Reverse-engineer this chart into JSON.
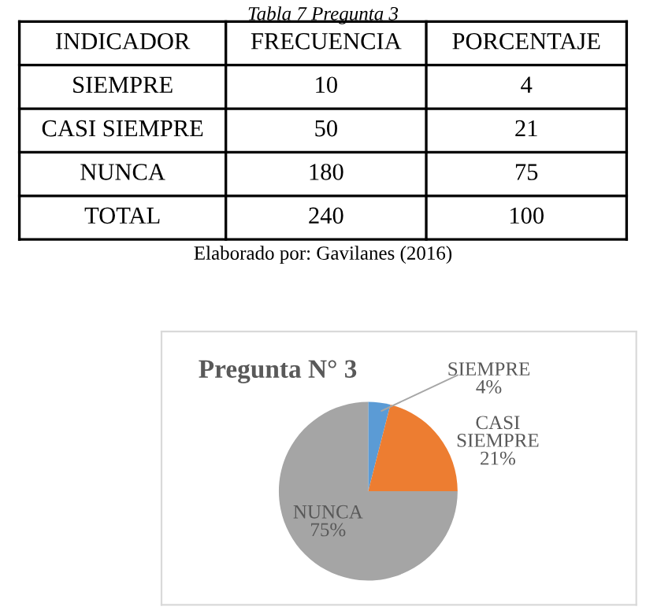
{
  "chart_data": [
    {
      "type": "other",
      "title": "Tabla 7 Pregunta 3",
      "ylabel": "INDICADOR",
      "categories": [
        "SIEMPRE",
        "CASI SIEMPRE",
        "NUNCA",
        "TOTAL"
      ],
      "series": [
        {
          "name": "FRECUENCIA",
          "values": [
            10,
            50,
            180,
            240
          ]
        },
        {
          "name": "PORCENTAJE",
          "values": [
            4,
            21,
            75,
            100
          ]
        }
      ],
      "annotations": [
        "Elaborado por: Gavilanes (2016)"
      ],
      "data_labels": true
    },
    {
      "type": "pie",
      "title": "Pregunta N° 3",
      "categories": [
        "SIEMPRE",
        "CASI SIEMPRE",
        "NUNCA"
      ],
      "values": [
        4,
        21,
        75
      ],
      "colors": [
        "#5b9bd5",
        "#ed7d31",
        "#a5a5a5"
      ],
      "value_labels": [
        "4%",
        "21%",
        "75%"
      ],
      "legend": false
    }
  ]
}
